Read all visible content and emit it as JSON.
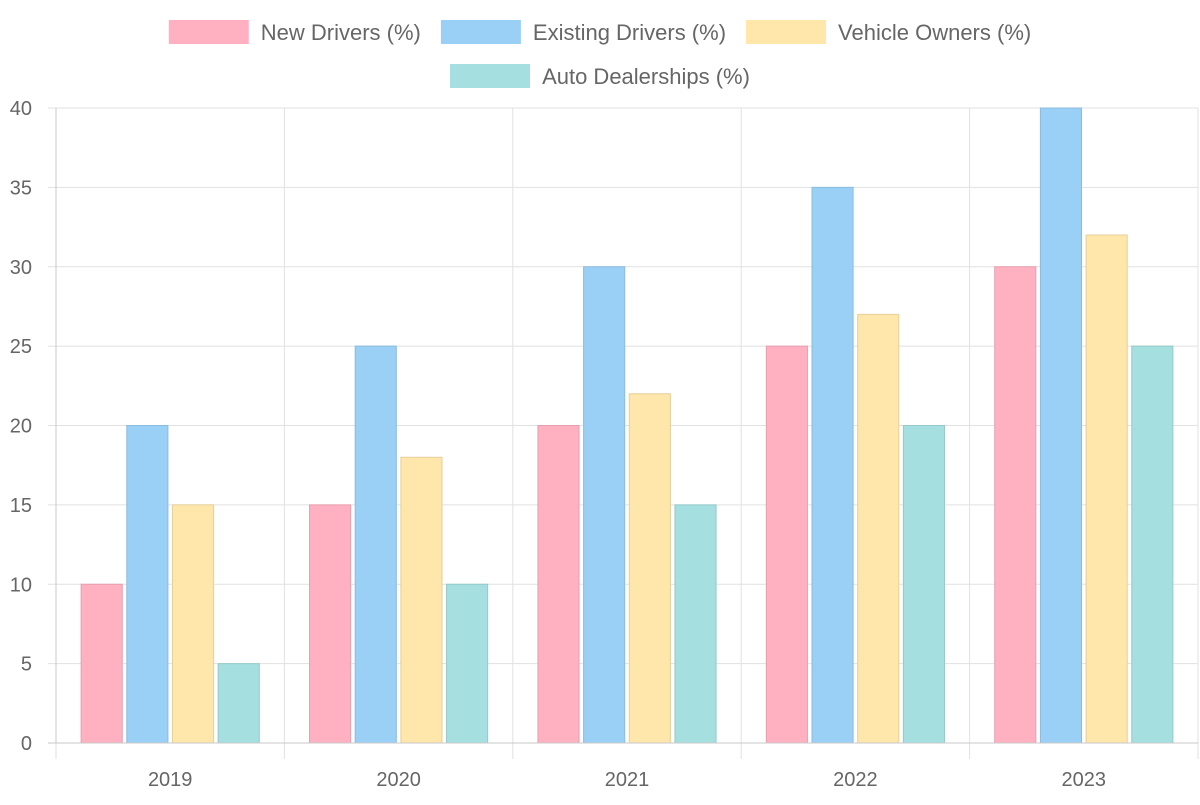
{
  "chart_data": {
    "type": "bar",
    "categories": [
      "2019",
      "2020",
      "2021",
      "2022",
      "2023"
    ],
    "series": [
      {
        "name": "New Drivers (%)",
        "values": [
          10,
          15,
          20,
          25,
          30
        ],
        "color": "#ffb1c1"
      },
      {
        "name": "Existing Drivers (%)",
        "values": [
          20,
          25,
          30,
          35,
          40
        ],
        "color": "#9ad0f5"
      },
      {
        "name": "Vehicle Owners (%)",
        "values": [
          15,
          18,
          22,
          27,
          32
        ],
        "color": "#ffe6aa"
      },
      {
        "name": "Auto Dealerships (%)",
        "values": [
          5,
          10,
          15,
          20,
          25
        ],
        "color": "#a5dfdf"
      }
    ],
    "ylim": [
      0,
      40
    ],
    "yticks": [
      0,
      5,
      10,
      15,
      20,
      25,
      30,
      35,
      40
    ],
    "grid": true,
    "legend_position": "top"
  }
}
